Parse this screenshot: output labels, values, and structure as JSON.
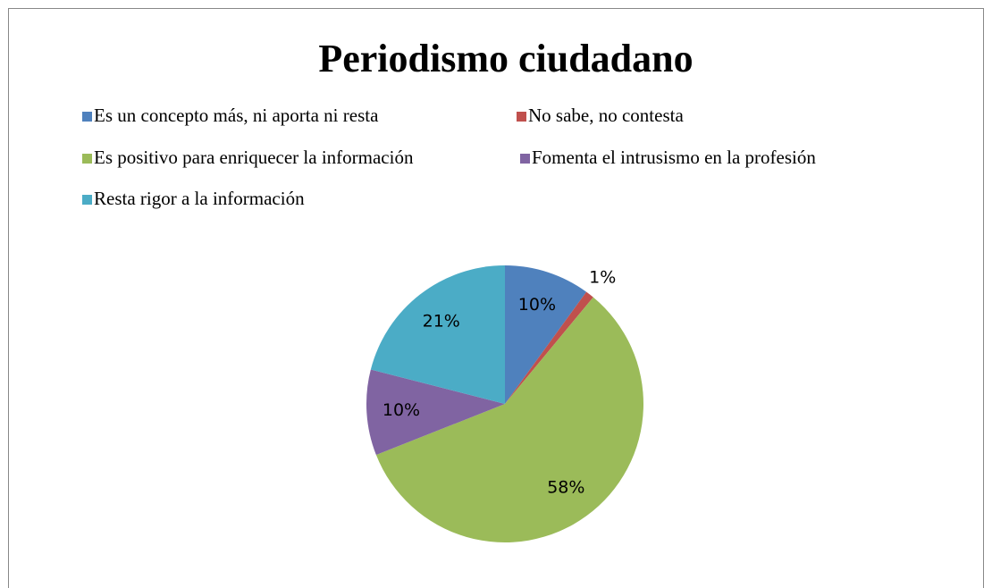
{
  "chart_data": {
    "type": "pie",
    "title": "Periodismo ciudadano",
    "categories": [
      "Es un concepto más, ni aporta ni resta",
      "No sabe, no contesta",
      "Es positivo para enriquecer la información",
      "Fomenta el intrusismo en la profesión",
      "Resta rigor a la información"
    ],
    "values": [
      10,
      1,
      58,
      10,
      21
    ],
    "value_labels": [
      "10%",
      "1%",
      "58%",
      "10%",
      "21%"
    ],
    "colors": [
      "#4f81bd",
      "#c0504d",
      "#9bbb59",
      "#8064a2",
      "#4bacc6"
    ]
  }
}
